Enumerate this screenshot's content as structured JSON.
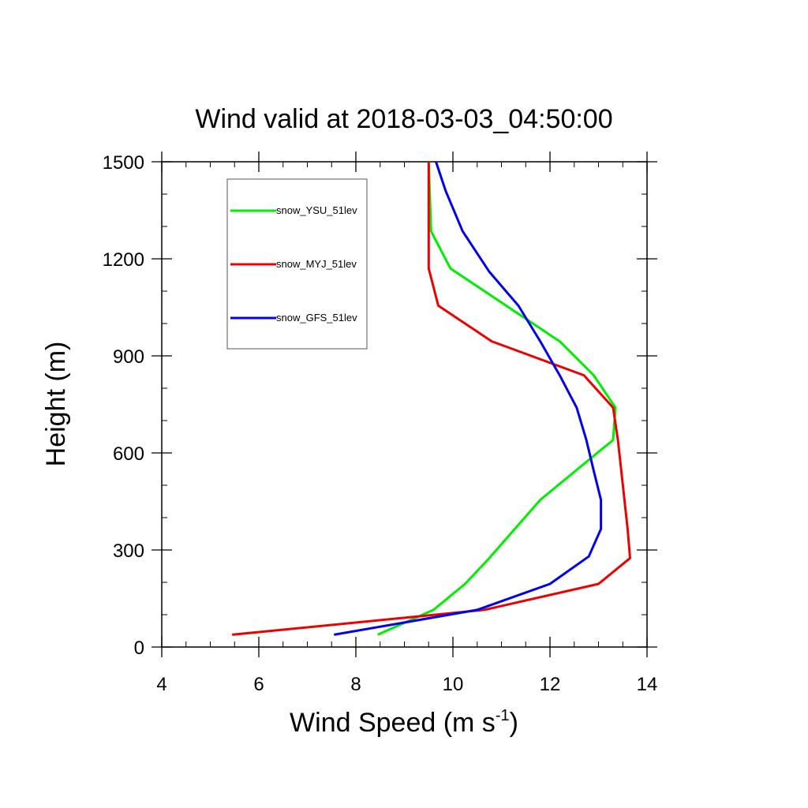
{
  "chart_data": {
    "type": "line",
    "title": "Wind valid at 2018-03-03_04:50:00",
    "xlabel": "Wind Speed (m s",
    "xlabel_sup": "-1",
    "xlabel_end": ")",
    "ylabel": "Height (m)",
    "xlim": [
      4,
      14
    ],
    "ylim": [
      0,
      1500
    ],
    "xticks": [
      4,
      6,
      8,
      10,
      12,
      14
    ],
    "xtick_labels": [
      "4",
      "6",
      "8",
      "10",
      "12",
      "14"
    ],
    "yticks": [
      0,
      300,
      600,
      900,
      1200,
      1500
    ],
    "ytick_labels": [
      "0",
      "300",
      "600",
      "900",
      "1200",
      "1500"
    ],
    "x_minor_step": 0.5,
    "y_minor_step": 100,
    "grid": false,
    "legend_position": "top-left",
    "series": [
      {
        "name": "snow_YSU_51lev",
        "color": "#00ee00",
        "points": [
          [
            8.45,
            38
          ],
          [
            9.6,
            115
          ],
          [
            10.25,
            195
          ],
          [
            10.75,
            275
          ],
          [
            11.8,
            455
          ],
          [
            13.3,
            640
          ],
          [
            13.35,
            740
          ],
          [
            12.9,
            840
          ],
          [
            12.2,
            945
          ],
          [
            9.95,
            1170
          ],
          [
            9.55,
            1285
          ],
          [
            9.5,
            1500
          ]
        ]
      },
      {
        "name": "snow_MYJ_51lev",
        "color": "#ee0000",
        "points": [
          [
            5.45,
            38
          ],
          [
            10.65,
            115
          ],
          [
            13.0,
            195
          ],
          [
            13.65,
            275
          ],
          [
            13.6,
            365
          ],
          [
            13.4,
            640
          ],
          [
            13.3,
            740
          ],
          [
            12.7,
            840
          ],
          [
            10.8,
            945
          ],
          [
            9.7,
            1055
          ],
          [
            9.5,
            1170
          ],
          [
            9.5,
            1500
          ]
        ]
      },
      {
        "name": "snow_GFS_51lev",
        "color": "#0000ee",
        "points": [
          [
            7.55,
            38
          ],
          [
            10.5,
            115
          ],
          [
            12.0,
            195
          ],
          [
            12.8,
            280
          ],
          [
            13.05,
            365
          ],
          [
            13.05,
            455
          ],
          [
            12.9,
            545
          ],
          [
            12.75,
            640
          ],
          [
            12.55,
            740
          ],
          [
            12.2,
            840
          ],
          [
            11.8,
            945
          ],
          [
            11.35,
            1055
          ],
          [
            10.75,
            1160
          ],
          [
            10.2,
            1285
          ],
          [
            9.85,
            1410
          ],
          [
            9.65,
            1500
          ]
        ]
      }
    ]
  }
}
